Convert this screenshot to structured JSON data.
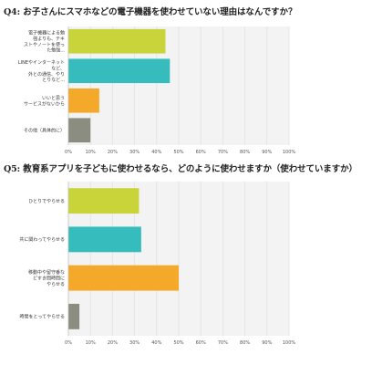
{
  "chart_data": [
    {
      "type": "bar",
      "orientation": "horizontal",
      "title": "Q4: お子さんにスマホなどの電子機器を使わせていない理由はなんですか？",
      "categories": [
        [
          "電子機器による勉",
          "強よりも、テキ",
          "ストやノートを使っ",
          "た勉強..."
        ],
        [
          "LINEやインターネット",
          "など、",
          "外との通信、やり",
          "とりなど..."
        ],
        [
          "いいと思う",
          "サービスがないから"
        ],
        [
          "その他（具体的に）"
        ]
      ],
      "values": [
        44,
        46,
        14,
        10
      ],
      "colors": [
        "#c9d43b",
        "#36bcbc",
        "#f4a92a",
        "#8a8d80"
      ],
      "xlim": [
        0,
        100
      ],
      "xticks": [
        "0%",
        "10%",
        "20%",
        "30%",
        "40%",
        "50%",
        "60%",
        "70%",
        "80%",
        "90%",
        "100%"
      ],
      "grid": true
    },
    {
      "type": "bar",
      "orientation": "horizontal",
      "title": "Q5: 教育系アプリを子どもに使わせるなら、どのように使わせますか（使わせていますか）",
      "categories": [
        [
          "ひとりでやらせる"
        ],
        [
          "共に関わってやらせる"
        ],
        [
          "移動中や留守番な",
          "どすき間時間に",
          "やらせる"
        ],
        [
          "時間をとってやらせる"
        ]
      ],
      "values": [
        32,
        33,
        50,
        5
      ],
      "colors": [
        "#c9d43b",
        "#36bcbc",
        "#f4a92a",
        "#8a8d80"
      ],
      "xlim": [
        0,
        100
      ],
      "xticks": [
        "0%",
        "10%",
        "20%",
        "30%",
        "40%",
        "50%",
        "60%",
        "70%",
        "80%",
        "90%",
        "100%"
      ],
      "grid": true
    }
  ]
}
